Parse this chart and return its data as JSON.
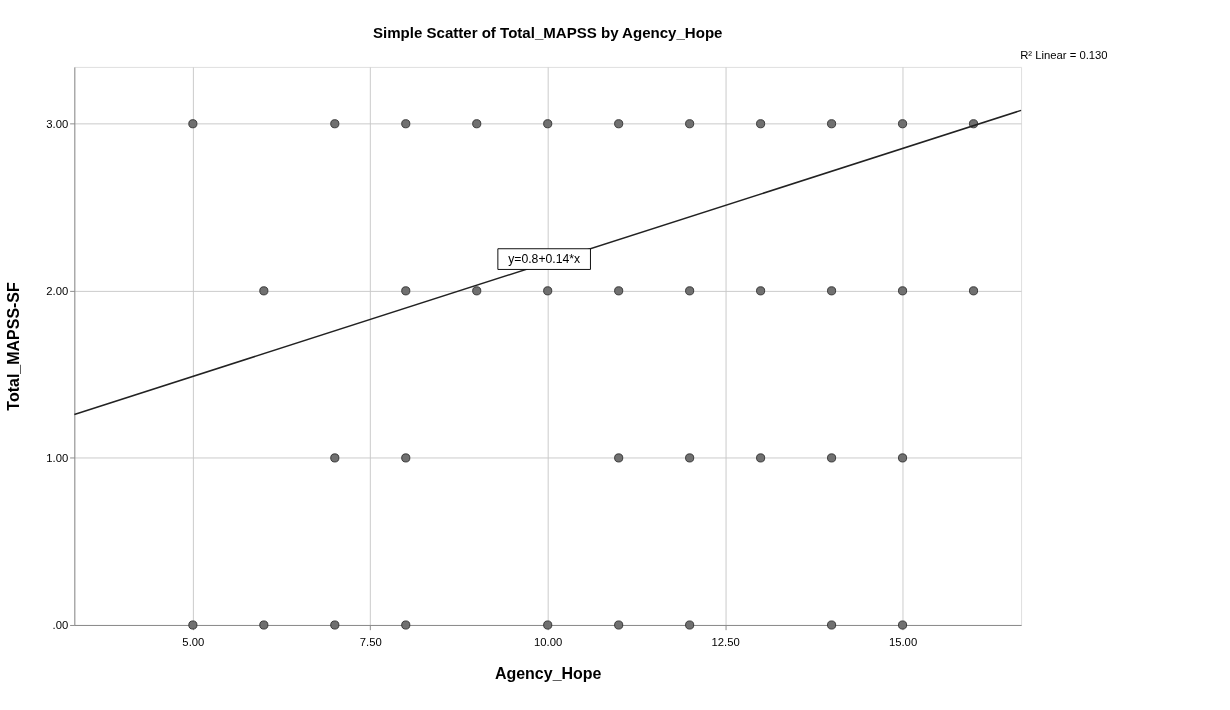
{
  "chart_data": {
    "type": "scatter",
    "title": "Simple Scatter of Total_MAPSS by Agency_Hope",
    "xlabel": "Agency_Hope",
    "ylabel": "Total_MAPSS-SF",
    "series": [
      {
        "color": "#707070",
        "x": [
          5,
          7,
          8,
          9,
          10,
          11,
          12,
          13,
          14,
          15,
          16,
          6,
          8,
          9,
          10,
          11,
          12,
          13,
          14,
          15,
          16,
          7,
          8,
          11,
          12,
          13,
          14,
          15,
          5,
          6,
          7,
          8,
          10,
          11,
          12,
          14,
          15
        ],
        "values": [
          3,
          3,
          3,
          3,
          3,
          3,
          3,
          3,
          3,
          3,
          3,
          2,
          2,
          2,
          2,
          2,
          2,
          2,
          2,
          2,
          2,
          1,
          1,
          1,
          1,
          1,
          1,
          1,
          0,
          0,
          0,
          0,
          0,
          0,
          0,
          0,
          0
        ]
      },
      {
        "type": "line",
        "marker": "none",
        "color": "#222222",
        "x": [
          3.33,
          16.67
        ],
        "values": [
          1.26,
          3.08
        ]
      }
    ],
    "xlim": [
      3.33,
      16.67
    ],
    "ylim": [
      0,
      3.34
    ],
    "xticks": [
      {
        "value": 5,
        "label": "5.00"
      },
      {
        "value": 7.5,
        "label": "7.50"
      },
      {
        "value": 10,
        "label": "10.00"
      },
      {
        "value": 12.5,
        "label": "12.50"
      },
      {
        "value": 15,
        "label": "15.00"
      }
    ],
    "yticks": [
      {
        "value": 0,
        "label": ".00"
      },
      {
        "value": 1,
        "label": "1.00"
      },
      {
        "value": 2,
        "label": "2.00"
      },
      {
        "value": 3,
        "label": "3.00"
      }
    ],
    "annotations": [
      {
        "text": "y=0.8+0.14*x",
        "x": 9.95,
        "y": 2.19
      },
      "R² Linear = 0.130"
    ],
    "grid": true,
    "marker": "circle"
  }
}
